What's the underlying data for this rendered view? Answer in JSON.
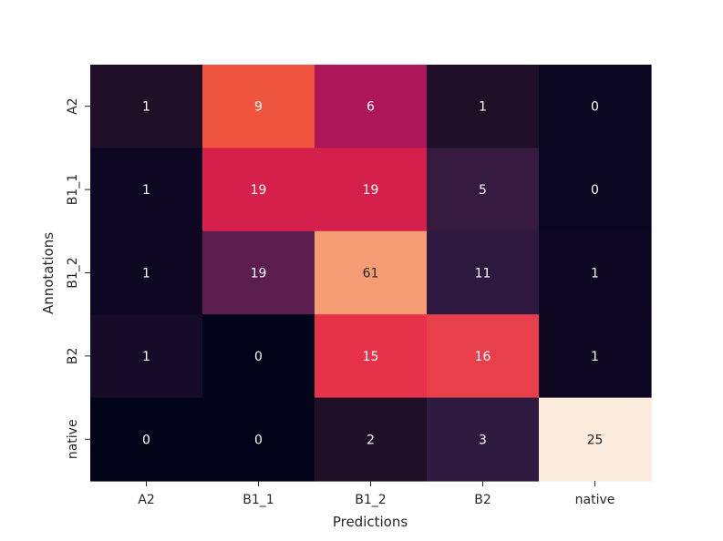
{
  "chart_data": {
    "type": "heatmap",
    "title": "",
    "xlabel": "Predictions",
    "ylabel": "Annotations",
    "x_categories": [
      "A2",
      "B1_1",
      "B1_2",
      "B2",
      "native"
    ],
    "y_categories": [
      "A2",
      "B1_1",
      "B1_2",
      "B2",
      "native"
    ],
    "values": [
      [
        1,
        9,
        6,
        1,
        0
      ],
      [
        1,
        19,
        19,
        5,
        0
      ],
      [
        1,
        19,
        61,
        11,
        1
      ],
      [
        1,
        0,
        15,
        16,
        1
      ],
      [
        0,
        0,
        2,
        3,
        25
      ]
    ],
    "cell_colors": [
      [
        "#1f1028",
        "#ef543c",
        "#ad1759",
        "#1f1028",
        "#0b0620"
      ],
      [
        "#0d0722",
        "#d5204b",
        "#d5204b",
        "#361a40",
        "#0b0620"
      ],
      [
        "#0d0722",
        "#5c1d4f",
        "#f49d74",
        "#2e1a40",
        "#0d0722"
      ],
      [
        "#160b29",
        "#03051a",
        "#e6334a",
        "#e8404a",
        "#0d0722"
      ],
      [
        "#03051a",
        "#03051a",
        "#1f1028",
        "#2f1a40",
        "#faebdd"
      ]
    ],
    "text_colors": [
      [
        "#ffffff",
        "#ffffff",
        "#ffffff",
        "#ffffff",
        "#ffffff"
      ],
      [
        "#ffffff",
        "#ffffff",
        "#ffffff",
        "#ffffff",
        "#ffffff"
      ],
      [
        "#ffffff",
        "#ffffff",
        "#262626",
        "#ffffff",
        "#ffffff"
      ],
      [
        "#ffffff",
        "#ffffff",
        "#ffffff",
        "#ffffff",
        "#ffffff"
      ],
      [
        "#ffffff",
        "#ffffff",
        "#ffffff",
        "#ffffff",
        "#262626"
      ]
    ],
    "colorbar": false,
    "grid": false
  }
}
